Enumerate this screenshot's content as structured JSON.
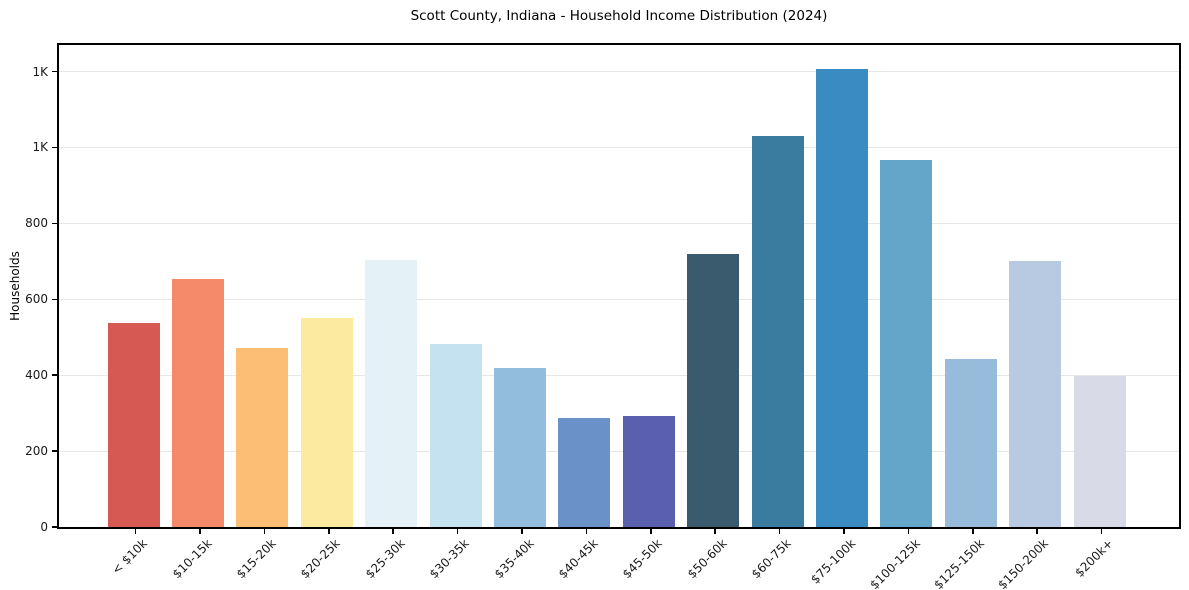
{
  "title": "Scott County, Indiana - Household Income Distribution (2024)",
  "chart_data": {
    "type": "bar",
    "title": "Scott County, Indiana - Household Income Distribution (2024)",
    "xlabel": "",
    "ylabel": "Households",
    "categories": [
      "< $10k",
      "$10-15k",
      "$15-20k",
      "$20-25k",
      "$25-30k",
      "$30-35k",
      "$35-40k",
      "$40-45k",
      "$45-50k",
      "$50-60k",
      "$60-75k",
      "$75-100k",
      "$100-125k",
      "$125-150k",
      "$150-200k",
      "$200k+"
    ],
    "values": [
      537,
      654,
      472,
      552,
      703,
      481,
      420,
      287,
      292,
      720,
      1029,
      1206,
      966,
      442,
      700,
      398
    ],
    "bar_colors": [
      "#d65953",
      "#f48a6a",
      "#fcbd74",
      "#fdeaa1",
      "#e4f1f7",
      "#c5e2f0",
      "#93bddd",
      "#6b92c8",
      "#5b60ae",
      "#3a5a6d",
      "#3a7ba0",
      "#398bc1",
      "#64a6ca",
      "#96bbdb",
      "#b7cae2",
      "#d9dae8"
    ],
    "ylim": [
      0,
      1270
    ],
    "yticks": [
      {
        "value": 0,
        "label": "0"
      },
      {
        "value": 200,
        "label": "200"
      },
      {
        "value": 400,
        "label": "400"
      },
      {
        "value": 600,
        "label": "600"
      },
      {
        "value": 800,
        "label": "800"
      },
      {
        "value": 1000,
        "label": "1K"
      },
      {
        "value": 1200,
        "label": "1K"
      }
    ],
    "grid": "horizontal-only",
    "legend": "none",
    "background_color": "#ffffff",
    "gridline_color": "#e6e6e6",
    "spine_color": "#000000"
  }
}
